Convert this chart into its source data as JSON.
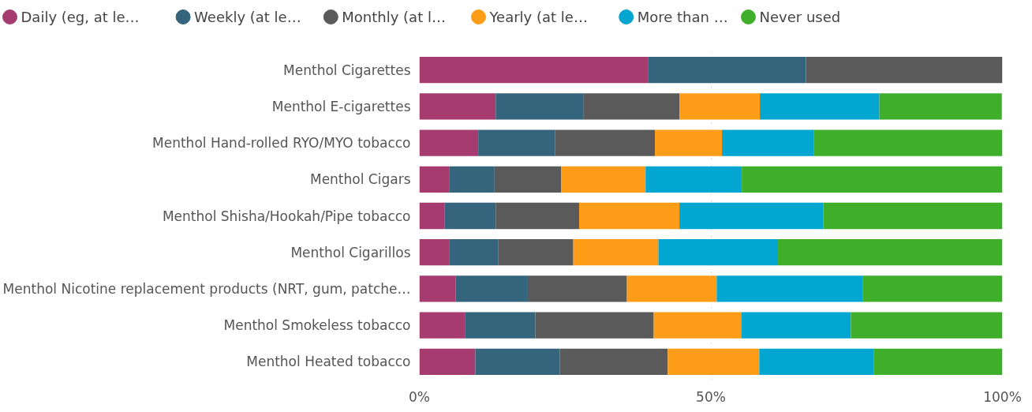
{
  "chart_data": {
    "type": "bar",
    "orientation": "horizontal",
    "stacked": true,
    "categories": [
      "Menthol Cigarettes",
      "Menthol E-cigarettes",
      "Menthol Hand-rolled RYO/MYO tobacco",
      "Menthol Cigars",
      "Menthol Shisha/Hookah/Pipe tobacco",
      "Menthol Cigarillos",
      "Menthol Nicotine replacement products (NRT, gum, patche…",
      "Menthol Smokeless tobacco",
      "Menthol Heated tobacco"
    ],
    "series": [
      {
        "name": "Daily (eg, at le…",
        "color": "#a53b6e",
        "values": [
          39.2,
          13.1,
          10.1,
          5.1,
          4.3,
          5.1,
          6.2,
          7.9,
          9.6
        ]
      },
      {
        "name": "Weekly (at le…",
        "color": "#34657c",
        "values": [
          27.1,
          15.0,
          13.2,
          7.8,
          8.8,
          8.4,
          12.4,
          12.0,
          14.5
        ]
      },
      {
        "name": "Monthly (at l…",
        "color": "#5a5a5a",
        "values": [
          33.7,
          16.5,
          17.1,
          11.4,
          14.3,
          12.9,
          17.0,
          20.3,
          18.5
        ]
      },
      {
        "name": "Yearly (at le…",
        "color": "#fd9c17",
        "values": [
          null,
          13.8,
          11.5,
          14.5,
          17.2,
          14.6,
          15.4,
          15.0,
          15.7
        ]
      },
      {
        "name": "More than …",
        "color": "#02a6d0",
        "values": [
          null,
          20.5,
          15.8,
          16.5,
          24.7,
          20.5,
          25.0,
          18.8,
          19.6
        ]
      },
      {
        "name": "Never used",
        "color": "#3eae2b",
        "values": [
          null,
          21.0,
          32.3,
          44.7,
          30.7,
          38.5,
          24.0,
          26.0,
          22.1
        ]
      }
    ],
    "xlim": [
      0,
      100
    ],
    "xticks": [
      {
        "value": 0,
        "label": "0%"
      },
      {
        "value": 50,
        "label": "50%"
      },
      {
        "value": 100,
        "label": "100%"
      }
    ],
    "grid": "x",
    "legend": "top"
  }
}
